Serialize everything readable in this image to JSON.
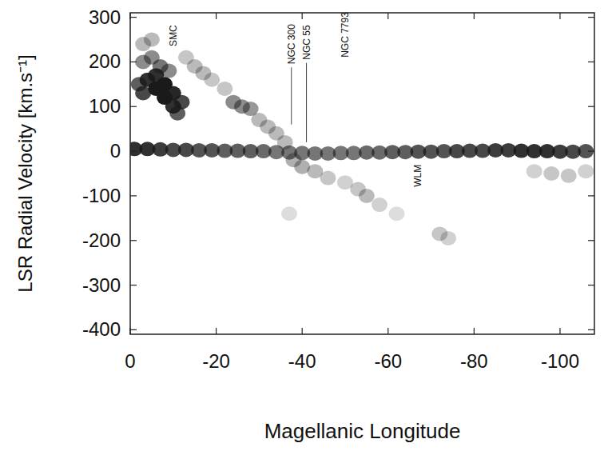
{
  "chart_data": {
    "type": "scatter",
    "x_label": "Magellanic Longitude",
    "y_label": "LSR Radial Velocity [km.s⁻¹]",
    "xlim": [
      0,
      -108
    ],
    "xticks": [
      0,
      -20,
      -40,
      -60,
      -80,
      -100
    ],
    "ylim": [
      -410,
      310
    ],
    "yticks": [
      -400,
      -300,
      -200,
      -100,
      0,
      100,
      200,
      300
    ],
    "color": "#1a1a1a",
    "marker": "ellipse",
    "grid": false,
    "x": [
      -1,
      -4,
      -7,
      -10,
      -13,
      -16,
      -19,
      -22,
      -25,
      -28,
      -31,
      -34,
      -37,
      -40,
      -43,
      -46,
      -49,
      -52,
      -55,
      -58,
      -61,
      -64,
      -67,
      -70,
      -73,
      -76,
      -79,
      -82,
      -85,
      -88,
      -91,
      -94,
      -97,
      -100,
      -103,
      -106,
      -3,
      -5,
      -3,
      -5,
      -4,
      -6,
      -6,
      -8,
      -8,
      -10,
      -10,
      -12,
      -11,
      -7,
      -9,
      -2,
      -3,
      -13,
      -15,
      -17,
      -19,
      -22,
      -24,
      -26,
      -28,
      -30,
      -32,
      -34,
      -36,
      -38,
      -40,
      -43,
      -46,
      -50,
      -53,
      -55,
      -58,
      -62,
      -72,
      -74,
      -37,
      -94,
      -98,
      -102,
      -106
    ],
    "values": [
      5,
      5,
      4,
      3,
      3,
      2,
      2,
      1,
      1,
      0,
      0,
      -2,
      -3,
      -4,
      -5,
      -5,
      -4,
      -4,
      -3,
      -3,
      -2,
      -2,
      -1,
      -1,
      0,
      0,
      1,
      1,
      2,
      2,
      1,
      0,
      0,
      -1,
      -1,
      0,
      240,
      250,
      200,
      210,
      160,
      170,
      140,
      150,
      120,
      130,
      100,
      110,
      85,
      190,
      180,
      150,
      130,
      210,
      190,
      175,
      160,
      140,
      110,
      100,
      95,
      70,
      55,
      40,
      20,
      -20,
      -35,
      -45,
      -60,
      -70,
      -85,
      -100,
      -120,
      -140,
      -185,
      -195,
      -140,
      -45,
      -50,
      -55,
      -45
    ],
    "intensity": [
      0.9,
      0.9,
      0.85,
      0.8,
      0.8,
      0.75,
      0.75,
      0.7,
      0.7,
      0.7,
      0.65,
      0.6,
      0.6,
      0.6,
      0.6,
      0.6,
      0.6,
      0.6,
      0.65,
      0.65,
      0.7,
      0.7,
      0.75,
      0.75,
      0.75,
      0.8,
      0.8,
      0.8,
      0.85,
      0.85,
      0.9,
      0.9,
      0.9,
      0.85,
      0.8,
      0.75,
      0.3,
      0.3,
      0.5,
      0.5,
      0.9,
      0.9,
      1,
      1,
      1,
      0.95,
      0.9,
      0.8,
      0.7,
      0.6,
      0.5,
      0.7,
      0.8,
      0.25,
      0.3,
      0.3,
      0.25,
      0.25,
      0.5,
      0.5,
      0.45,
      0.3,
      0.3,
      0.3,
      0.3,
      0.35,
      0.35,
      0.3,
      0.25,
      0.2,
      0.25,
      0.3,
      0.2,
      0.15,
      0.25,
      0.2,
      0.15,
      0.2,
      0.25,
      0.25,
      0.2
    ],
    "annotations": [
      {
        "text": "SMC",
        "x": -10,
        "y": 235
      },
      {
        "text": "NGC 300",
        "x": -37.5,
        "y": 195,
        "line_to": 60
      },
      {
        "text": "NGC 55",
        "x": -41,
        "y": 205,
        "line_to": 20
      },
      {
        "text": "NGC 7793",
        "x": -50,
        "y": 210
      },
      {
        "text": "WLM",
        "x": -67,
        "y": -80
      }
    ]
  }
}
